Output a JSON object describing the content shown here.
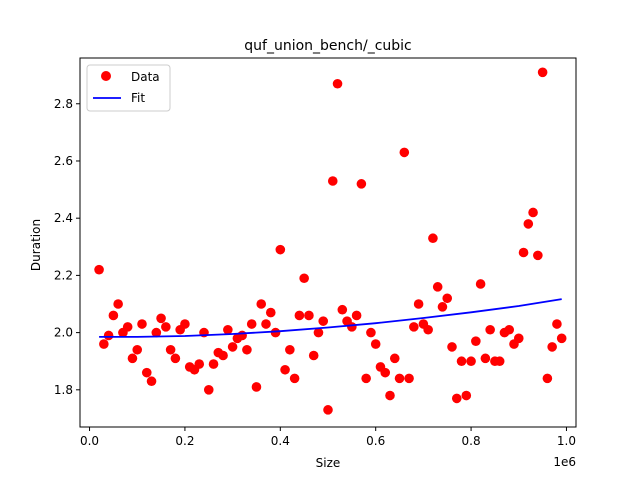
{
  "chart_data": {
    "type": "scatter",
    "title": "quf_union_bench/_cubic",
    "xlabel": "Size",
    "ylabel": "Duration",
    "x_offset_label": "1e6",
    "xlim": [
      -20000,
      1020000
    ],
    "ylim": [
      1.67,
      2.96
    ],
    "xticks": [
      0,
      200000,
      400000,
      600000,
      800000,
      1000000
    ],
    "xtick_labels": [
      "0.0",
      "0.2",
      "0.4",
      "0.6",
      "0.8",
      "1.0"
    ],
    "yticks": [
      1.8,
      2.0,
      2.2,
      2.4,
      2.6,
      2.8
    ],
    "ytick_labels": [
      "1.8",
      "2.0",
      "2.2",
      "2.4",
      "2.6",
      "2.8"
    ],
    "grid": false,
    "legend": {
      "placement": "top-left",
      "entries": [
        "Data",
        "Fit"
      ]
    },
    "colors": {
      "data": "#ff0000",
      "fit": "#0000ff"
    },
    "series": [
      {
        "name": "Data",
        "kind": "scatter",
        "x": [
          20000,
          30000,
          40000,
          50000,
          60000,
          70000,
          80000,
          90000,
          100000,
          110000,
          120000,
          130000,
          140000,
          150000,
          160000,
          170000,
          180000,
          190000,
          200000,
          210000,
          220000,
          230000,
          240000,
          250000,
          260000,
          270000,
          280000,
          290000,
          300000,
          310000,
          320000,
          330000,
          340000,
          350000,
          360000,
          370000,
          380000,
          390000,
          400000,
          410000,
          420000,
          430000,
          440000,
          450000,
          460000,
          470000,
          480000,
          490000,
          500000,
          510000,
          520000,
          530000,
          540000,
          550000,
          560000,
          570000,
          580000,
          590000,
          600000,
          610000,
          620000,
          630000,
          640000,
          650000,
          660000,
          670000,
          680000,
          690000,
          700000,
          710000,
          720000,
          730000,
          740000,
          750000,
          760000,
          770000,
          780000,
          790000,
          800000,
          810000,
          820000,
          830000,
          840000,
          850000,
          860000,
          870000,
          880000,
          890000,
          900000,
          910000,
          920000,
          930000,
          940000,
          950000,
          960000,
          970000,
          980000,
          990000
        ],
        "y": [
          2.22,
          1.96,
          1.99,
          2.06,
          2.1,
          2.0,
          2.02,
          1.91,
          1.94,
          2.03,
          1.86,
          1.83,
          2.0,
          2.05,
          2.02,
          1.94,
          1.91,
          2.01,
          2.03,
          1.88,
          1.87,
          1.89,
          2.0,
          1.8,
          1.89,
          1.93,
          1.92,
          2.01,
          1.95,
          1.98,
          1.99,
          1.94,
          2.03,
          1.81,
          2.1,
          2.03,
          2.07,
          2.0,
          2.29,
          1.87,
          1.94,
          1.84,
          2.06,
          2.19,
          2.06,
          1.92,
          2.0,
          2.04,
          1.73,
          2.53,
          2.87,
          2.08,
          2.04,
          2.02,
          2.06,
          2.52,
          1.84,
          2.0,
          1.96,
          1.88,
          1.86,
          1.78,
          1.91,
          1.84,
          2.63,
          1.84,
          2.02,
          2.1,
          2.03,
          2.01,
          2.33,
          2.16,
          2.09,
          2.12,
          1.95,
          1.77,
          1.9,
          1.78,
          1.9,
          1.97,
          2.17,
          1.91,
          2.01,
          1.9,
          1.9,
          2.0,
          2.01,
          1.96,
          1.98,
          2.28,
          2.38,
          2.42,
          2.27,
          2.91,
          1.84,
          1.95,
          2.03,
          1.98
        ]
      },
      {
        "name": "Fit",
        "kind": "line",
        "x": [
          20000,
          100000,
          200000,
          300000,
          400000,
          500000,
          600000,
          700000,
          800000,
          900000,
          990000
        ],
        "y": [
          1.985,
          1.985,
          1.988,
          1.995,
          2.005,
          2.018,
          2.033,
          2.051,
          2.071,
          2.093,
          2.117
        ]
      }
    ]
  }
}
